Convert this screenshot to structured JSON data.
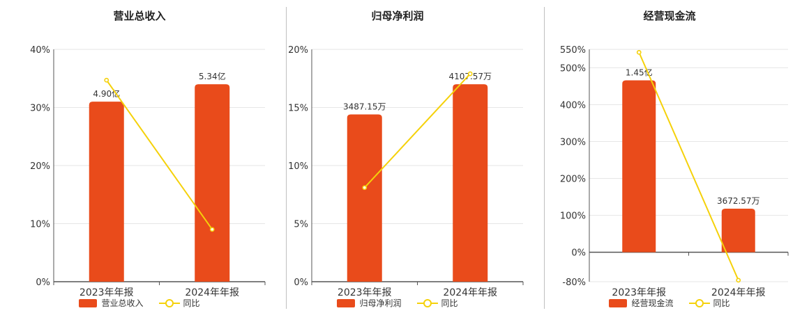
{
  "colors": {
    "bar": "#e94b1b",
    "line": "#f5d10a",
    "grid": "#e6e6e6",
    "axis": "#333333"
  },
  "chart_data": [
    {
      "type": "bar",
      "title": "营业总收入",
      "categories": [
        "2023年年报",
        "2024年年报"
      ],
      "series": [
        {
          "name": "营业总收入",
          "type": "bar",
          "values": [
            31,
            34
          ],
          "labels": [
            "4.90亿",
            "5.34亿"
          ]
        },
        {
          "name": "同比",
          "type": "line",
          "values": [
            34.7,
            9.0
          ]
        }
      ],
      "yticks": [
        "0%",
        "10%",
        "20%",
        "30%",
        "40%"
      ],
      "ylim": [
        0,
        40
      ],
      "grid": true,
      "legend": "bottom"
    },
    {
      "type": "bar",
      "title": "归母净利润",
      "categories": [
        "2023年年报",
        "2024年年报"
      ],
      "series": [
        {
          "name": "归母净利润",
          "type": "bar",
          "values": [
            14.4,
            17.0
          ],
          "labels": [
            "3487.15万",
            "4107.57万"
          ]
        },
        {
          "name": "同比",
          "type": "line",
          "values": [
            8.1,
            17.9
          ]
        }
      ],
      "yticks": [
        "0%",
        "5%",
        "10%",
        "15%",
        "20%"
      ],
      "ylim": [
        0,
        20
      ],
      "grid": true,
      "legend": "bottom"
    },
    {
      "type": "bar",
      "title": "经营现金流",
      "categories": [
        "2023年年报",
        "2024年年报"
      ],
      "series": [
        {
          "name": "经营现金流",
          "type": "bar",
          "values": [
            466,
            118
          ],
          "labels": [
            "1.45亿",
            "3672.57万"
          ]
        },
        {
          "name": "同比",
          "type": "line",
          "values": [
            542,
            -76
          ]
        }
      ],
      "yticks": [
        "-80%",
        "0%",
        "100%",
        "200%",
        "300%",
        "400%",
        "500%",
        "550%"
      ],
      "ytick_values": [
        -80,
        0,
        100,
        200,
        300,
        400,
        500,
        550
      ],
      "ylim": [
        -80,
        550
      ],
      "grid": true,
      "legend": "bottom"
    }
  ]
}
